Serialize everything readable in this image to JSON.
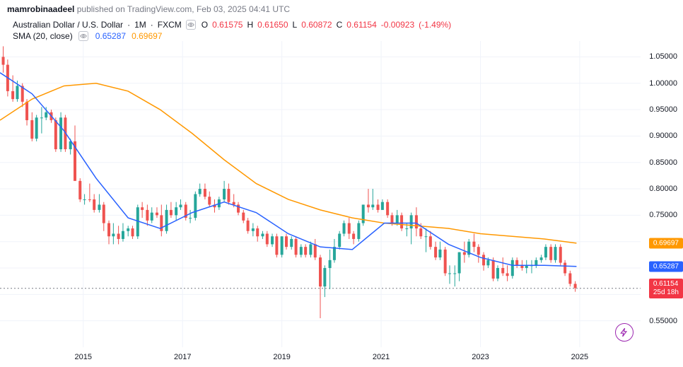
{
  "header": {
    "username": "mamrobinaadeel",
    "published_on": "published on",
    "site": "TradingView.com",
    "timestamp": "Feb 03, 2025 04:41 UTC"
  },
  "symbol": {
    "name": "Australian Dollar / U.S. Dollar",
    "interval": "1M",
    "exchange": "FXCM",
    "o_label": "O",
    "o": "0.61575",
    "h_label": "H",
    "h": "0.61650",
    "l_label": "L",
    "l": "0.60872",
    "c_label": "C",
    "c": "0.61154",
    "change": "-0.00923",
    "change_pct": "(-1.49%)"
  },
  "sma": {
    "label": "SMA (20, close)",
    "val1": "0.65287",
    "val2": "0.69697"
  },
  "yaxis": {
    "min": 0.5,
    "max": 1.08,
    "ticks": [
      1.05,
      1.0,
      0.95,
      0.9,
      0.85,
      0.8,
      0.75,
      0.7,
      0.65,
      0.6,
      0.55
    ],
    "labels": [
      "1.05000",
      "1.00000",
      "0.95000",
      "0.90000",
      "0.85000",
      "0.80000",
      "0.75000",
      "0.70000",
      "0.65000",
      "0.60000",
      "0.55000"
    ]
  },
  "xaxis": {
    "labels": [
      "2015",
      "2017",
      "2019",
      "2021",
      "2023",
      "2025"
    ],
    "positions": [
      0.13,
      0.285,
      0.44,
      0.595,
      0.75,
      0.905
    ]
  },
  "price_tags": {
    "orange": "0.69697",
    "blue": "0.65287",
    "red_price": "0.61154",
    "red_time": "25d 18h"
  },
  "current_price": 0.61154,
  "colors": {
    "up": "#26a69a",
    "down": "#ef5350",
    "sma_blue": "#2962ff",
    "sma_orange": "#ff9800",
    "grid": "#f0f3fa"
  },
  "candles": [
    {
      "x": 0.005,
      "o": 1.05,
      "h": 1.07,
      "l": 1.02,
      "c": 1.035,
      "d": "d"
    },
    {
      "x": 0.012,
      "o": 1.035,
      "h": 1.045,
      "l": 0.975,
      "c": 0.985,
      "d": "d"
    },
    {
      "x": 0.02,
      "o": 0.985,
      "h": 1.015,
      "l": 0.965,
      "c": 0.97,
      "d": "d"
    },
    {
      "x": 0.027,
      "o": 0.97,
      "h": 1.005,
      "l": 0.965,
      "c": 0.995,
      "d": "u"
    },
    {
      "x": 0.035,
      "o": 0.995,
      "h": 1.0,
      "l": 0.955,
      "c": 0.965,
      "d": "d"
    },
    {
      "x": 0.042,
      "o": 0.965,
      "h": 0.97,
      "l": 0.92,
      "c": 0.93,
      "d": "d"
    },
    {
      "x": 0.05,
      "o": 0.93,
      "h": 0.945,
      "l": 0.89,
      "c": 0.895,
      "d": "d"
    },
    {
      "x": 0.057,
      "o": 0.895,
      "h": 0.94,
      "l": 0.89,
      "c": 0.935,
      "d": "u"
    },
    {
      "x": 0.065,
      "o": 0.935,
      "h": 0.955,
      "l": 0.905,
      "c": 0.935,
      "d": "u"
    },
    {
      "x": 0.072,
      "o": 0.935,
      "h": 0.955,
      "l": 0.93,
      "c": 0.945,
      "d": "u"
    },
    {
      "x": 0.08,
      "o": 0.945,
      "h": 0.95,
      "l": 0.925,
      "c": 0.93,
      "d": "d"
    },
    {
      "x": 0.087,
      "o": 0.93,
      "h": 0.935,
      "l": 0.87,
      "c": 0.875,
      "d": "d"
    },
    {
      "x": 0.095,
      "o": 0.875,
      "h": 0.945,
      "l": 0.87,
      "c": 0.935,
      "d": "u"
    },
    {
      "x": 0.102,
      "o": 0.935,
      "h": 0.94,
      "l": 0.87,
      "c": 0.875,
      "d": "d"
    },
    {
      "x": 0.11,
      "o": 0.875,
      "h": 0.895,
      "l": 0.865,
      "c": 0.89,
      "d": "u"
    },
    {
      "x": 0.117,
      "o": 0.89,
      "h": 0.92,
      "l": 0.88,
      "c": 0.815,
      "d": "d"
    },
    {
      "x": 0.125,
      "o": 0.815,
      "h": 0.82,
      "l": 0.775,
      "c": 0.78,
      "d": "d"
    },
    {
      "x": 0.132,
      "o": 0.78,
      "h": 0.79,
      "l": 0.77,
      "c": 0.78,
      "d": "u"
    },
    {
      "x": 0.14,
      "o": 0.78,
      "h": 0.81,
      "l": 0.775,
      "c": 0.78,
      "d": "d"
    },
    {
      "x": 0.147,
      "o": 0.78,
      "h": 0.79,
      "l": 0.755,
      "c": 0.76,
      "d": "d"
    },
    {
      "x": 0.155,
      "o": 0.76,
      "h": 0.79,
      "l": 0.755,
      "c": 0.77,
      "d": "u"
    },
    {
      "x": 0.162,
      "o": 0.77,
      "h": 0.775,
      "l": 0.72,
      "c": 0.735,
      "d": "d"
    },
    {
      "x": 0.17,
      "o": 0.735,
      "h": 0.74,
      "l": 0.695,
      "c": 0.71,
      "d": "d"
    },
    {
      "x": 0.177,
      "o": 0.71,
      "h": 0.735,
      "l": 0.695,
      "c": 0.715,
      "d": "u"
    },
    {
      "x": 0.185,
      "o": 0.715,
      "h": 0.73,
      "l": 0.695,
      "c": 0.705,
      "d": "d"
    },
    {
      "x": 0.192,
      "o": 0.705,
      "h": 0.735,
      "l": 0.7,
      "c": 0.72,
      "d": "u"
    },
    {
      "x": 0.2,
      "o": 0.72,
      "h": 0.73,
      "l": 0.71,
      "c": 0.725,
      "d": "u"
    },
    {
      "x": 0.207,
      "o": 0.725,
      "h": 0.73,
      "l": 0.705,
      "c": 0.71,
      "d": "d"
    },
    {
      "x": 0.215,
      "o": 0.71,
      "h": 0.77,
      "l": 0.705,
      "c": 0.765,
      "d": "u"
    },
    {
      "x": 0.222,
      "o": 0.765,
      "h": 0.775,
      "l": 0.745,
      "c": 0.76,
      "d": "d"
    },
    {
      "x": 0.23,
      "o": 0.76,
      "h": 0.77,
      "l": 0.73,
      "c": 0.74,
      "d": "d"
    },
    {
      "x": 0.237,
      "o": 0.74,
      "h": 0.765,
      "l": 0.735,
      "c": 0.755,
      "d": "u"
    },
    {
      "x": 0.245,
      "o": 0.755,
      "h": 0.765,
      "l": 0.745,
      "c": 0.75,
      "d": "d"
    },
    {
      "x": 0.252,
      "o": 0.75,
      "h": 0.77,
      "l": 0.71,
      "c": 0.72,
      "d": "d"
    },
    {
      "x": 0.26,
      "o": 0.72,
      "h": 0.77,
      "l": 0.715,
      "c": 0.76,
      "d": "u"
    },
    {
      "x": 0.267,
      "o": 0.76,
      "h": 0.775,
      "l": 0.745,
      "c": 0.75,
      "d": "d"
    },
    {
      "x": 0.275,
      "o": 0.75,
      "h": 0.775,
      "l": 0.74,
      "c": 0.765,
      "d": "u"
    },
    {
      "x": 0.282,
      "o": 0.765,
      "h": 0.78,
      "l": 0.76,
      "c": 0.77,
      "d": "u"
    },
    {
      "x": 0.29,
      "o": 0.77,
      "h": 0.775,
      "l": 0.74,
      "c": 0.745,
      "d": "d"
    },
    {
      "x": 0.297,
      "o": 0.745,
      "h": 0.76,
      "l": 0.735,
      "c": 0.745,
      "d": "u"
    },
    {
      "x": 0.305,
      "o": 0.745,
      "h": 0.795,
      "l": 0.74,
      "c": 0.79,
      "d": "u"
    },
    {
      "x": 0.312,
      "o": 0.79,
      "h": 0.81,
      "l": 0.785,
      "c": 0.8,
      "d": "u"
    },
    {
      "x": 0.32,
      "o": 0.8,
      "h": 0.81,
      "l": 0.78,
      "c": 0.785,
      "d": "d"
    },
    {
      "x": 0.327,
      "o": 0.785,
      "h": 0.795,
      "l": 0.765,
      "c": 0.77,
      "d": "d"
    },
    {
      "x": 0.335,
      "o": 0.77,
      "h": 0.78,
      "l": 0.755,
      "c": 0.765,
      "d": "d"
    },
    {
      "x": 0.342,
      "o": 0.765,
      "h": 0.785,
      "l": 0.76,
      "c": 0.78,
      "d": "u"
    },
    {
      "x": 0.35,
      "o": 0.78,
      "h": 0.815,
      "l": 0.775,
      "c": 0.8,
      "d": "u"
    },
    {
      "x": 0.357,
      "o": 0.8,
      "h": 0.81,
      "l": 0.77,
      "c": 0.775,
      "d": "d"
    },
    {
      "x": 0.365,
      "o": 0.775,
      "h": 0.79,
      "l": 0.765,
      "c": 0.77,
      "d": "d"
    },
    {
      "x": 0.372,
      "o": 0.77,
      "h": 0.775,
      "l": 0.75,
      "c": 0.755,
      "d": "d"
    },
    {
      "x": 0.38,
      "o": 0.755,
      "h": 0.76,
      "l": 0.735,
      "c": 0.74,
      "d": "d"
    },
    {
      "x": 0.387,
      "o": 0.74,
      "h": 0.745,
      "l": 0.715,
      "c": 0.72,
      "d": "d"
    },
    {
      "x": 0.395,
      "o": 0.72,
      "h": 0.735,
      "l": 0.71,
      "c": 0.725,
      "d": "u"
    },
    {
      "x": 0.402,
      "o": 0.725,
      "h": 0.73,
      "l": 0.7,
      "c": 0.71,
      "d": "d"
    },
    {
      "x": 0.41,
      "o": 0.71,
      "h": 0.72,
      "l": 0.705,
      "c": 0.715,
      "d": "u"
    },
    {
      "x": 0.417,
      "o": 0.715,
      "h": 0.72,
      "l": 0.69,
      "c": 0.695,
      "d": "d"
    },
    {
      "x": 0.425,
      "o": 0.695,
      "h": 0.715,
      "l": 0.69,
      "c": 0.71,
      "d": "u"
    },
    {
      "x": 0.432,
      "o": 0.71,
      "h": 0.715,
      "l": 0.67,
      "c": 0.675,
      "d": "d"
    },
    {
      "x": 0.44,
      "o": 0.675,
      "h": 0.71,
      "l": 0.67,
      "c": 0.71,
      "d": "u"
    },
    {
      "x": 0.447,
      "o": 0.71,
      "h": 0.715,
      "l": 0.685,
      "c": 0.69,
      "d": "d"
    },
    {
      "x": 0.455,
      "o": 0.69,
      "h": 0.71,
      "l": 0.685,
      "c": 0.705,
      "d": "u"
    },
    {
      "x": 0.462,
      "o": 0.705,
      "h": 0.71,
      "l": 0.67,
      "c": 0.675,
      "d": "d"
    },
    {
      "x": 0.47,
      "o": 0.675,
      "h": 0.695,
      "l": 0.67,
      "c": 0.69,
      "d": "u"
    },
    {
      "x": 0.477,
      "o": 0.69,
      "h": 0.695,
      "l": 0.67,
      "c": 0.675,
      "d": "d"
    },
    {
      "x": 0.485,
      "o": 0.675,
      "h": 0.7,
      "l": 0.67,
      "c": 0.695,
      "d": "u"
    },
    {
      "x": 0.492,
      "o": 0.695,
      "h": 0.705,
      "l": 0.665,
      "c": 0.67,
      "d": "d"
    },
    {
      "x": 0.5,
      "o": 0.67,
      "h": 0.675,
      "l": 0.555,
      "c": 0.615,
      "d": "d"
    },
    {
      "x": 0.507,
      "o": 0.615,
      "h": 0.655,
      "l": 0.595,
      "c": 0.65,
      "d": "u"
    },
    {
      "x": 0.515,
      "o": 0.65,
      "h": 0.685,
      "l": 0.61,
      "c": 0.665,
      "d": "u"
    },
    {
      "x": 0.522,
      "o": 0.665,
      "h": 0.705,
      "l": 0.66,
      "c": 0.69,
      "d": "u"
    },
    {
      "x": 0.53,
      "o": 0.69,
      "h": 0.72,
      "l": 0.685,
      "c": 0.715,
      "d": "u"
    },
    {
      "x": 0.537,
      "o": 0.715,
      "h": 0.74,
      "l": 0.71,
      "c": 0.735,
      "d": "u"
    },
    {
      "x": 0.545,
      "o": 0.735,
      "h": 0.745,
      "l": 0.705,
      "c": 0.715,
      "d": "d"
    },
    {
      "x": 0.552,
      "o": 0.715,
      "h": 0.72,
      "l": 0.695,
      "c": 0.705,
      "d": "d"
    },
    {
      "x": 0.56,
      "o": 0.705,
      "h": 0.74,
      "l": 0.7,
      "c": 0.735,
      "d": "u"
    },
    {
      "x": 0.567,
      "o": 0.735,
      "h": 0.77,
      "l": 0.73,
      "c": 0.77,
      "d": "u"
    },
    {
      "x": 0.575,
      "o": 0.77,
      "h": 0.8,
      "l": 0.755,
      "c": 0.765,
      "d": "d"
    },
    {
      "x": 0.582,
      "o": 0.765,
      "h": 0.8,
      "l": 0.76,
      "c": 0.77,
      "d": "u"
    },
    {
      "x": 0.59,
      "o": 0.77,
      "h": 0.78,
      "l": 0.755,
      "c": 0.76,
      "d": "d"
    },
    {
      "x": 0.597,
      "o": 0.76,
      "h": 0.78,
      "l": 0.77,
      "c": 0.775,
      "d": "u"
    },
    {
      "x": 0.605,
      "o": 0.775,
      "h": 0.78,
      "l": 0.745,
      "c": 0.75,
      "d": "d"
    },
    {
      "x": 0.612,
      "o": 0.75,
      "h": 0.755,
      "l": 0.73,
      "c": 0.735,
      "d": "d"
    },
    {
      "x": 0.62,
      "o": 0.735,
      "h": 0.76,
      "l": 0.73,
      "c": 0.75,
      "d": "u"
    },
    {
      "x": 0.627,
      "o": 0.75,
      "h": 0.755,
      "l": 0.72,
      "c": 0.725,
      "d": "d"
    },
    {
      "x": 0.635,
      "o": 0.725,
      "h": 0.735,
      "l": 0.71,
      "c": 0.725,
      "d": "u"
    },
    {
      "x": 0.642,
      "o": 0.725,
      "h": 0.755,
      "l": 0.695,
      "c": 0.75,
      "d": "u"
    },
    {
      "x": 0.65,
      "o": 0.75,
      "h": 0.765,
      "l": 0.71,
      "c": 0.725,
      "d": "d"
    },
    {
      "x": 0.657,
      "o": 0.725,
      "h": 0.735,
      "l": 0.705,
      "c": 0.71,
      "d": "d"
    },
    {
      "x": 0.665,
      "o": 0.71,
      "h": 0.725,
      "l": 0.68,
      "c": 0.71,
      "d": "u"
    },
    {
      "x": 0.672,
      "o": 0.71,
      "h": 0.72,
      "l": 0.685,
      "c": 0.69,
      "d": "d"
    },
    {
      "x": 0.68,
      "o": 0.69,
      "h": 0.7,
      "l": 0.665,
      "c": 0.67,
      "d": "d"
    },
    {
      "x": 0.687,
      "o": 0.67,
      "h": 0.7,
      "l": 0.665,
      "c": 0.685,
      "d": "u"
    },
    {
      "x": 0.695,
      "o": 0.685,
      "h": 0.69,
      "l": 0.635,
      "c": 0.64,
      "d": "d"
    },
    {
      "x": 0.702,
      "o": 0.64,
      "h": 0.655,
      "l": 0.62,
      "c": 0.64,
      "d": "u"
    },
    {
      "x": 0.71,
      "o": 0.64,
      "h": 0.655,
      "l": 0.615,
      "c": 0.64,
      "d": "u"
    },
    {
      "x": 0.717,
      "o": 0.64,
      "h": 0.68,
      "l": 0.625,
      "c": 0.68,
      "d": "u"
    },
    {
      "x": 0.725,
      "o": 0.68,
      "h": 0.7,
      "l": 0.66,
      "c": 0.675,
      "d": "d"
    },
    {
      "x": 0.732,
      "o": 0.675,
      "h": 0.705,
      "l": 0.67,
      "c": 0.7,
      "d": "u"
    },
    {
      "x": 0.74,
      "o": 0.7,
      "h": 0.715,
      "l": 0.68,
      "c": 0.69,
      "d": "d"
    },
    {
      "x": 0.747,
      "o": 0.69,
      "h": 0.695,
      "l": 0.66,
      "c": 0.675,
      "d": "d"
    },
    {
      "x": 0.755,
      "o": 0.675,
      "h": 0.68,
      "l": 0.645,
      "c": 0.655,
      "d": "d"
    },
    {
      "x": 0.762,
      "o": 0.655,
      "h": 0.67,
      "l": 0.65,
      "c": 0.665,
      "d": "u"
    },
    {
      "x": 0.77,
      "o": 0.665,
      "h": 0.67,
      "l": 0.625,
      "c": 0.63,
      "d": "d"
    },
    {
      "x": 0.777,
      "o": 0.63,
      "h": 0.655,
      "l": 0.625,
      "c": 0.65,
      "d": "u"
    },
    {
      "x": 0.785,
      "o": 0.65,
      "h": 0.67,
      "l": 0.635,
      "c": 0.64,
      "d": "d"
    },
    {
      "x": 0.792,
      "o": 0.64,
      "h": 0.655,
      "l": 0.625,
      "c": 0.635,
      "d": "d"
    },
    {
      "x": 0.8,
      "o": 0.635,
      "h": 0.67,
      "l": 0.63,
      "c": 0.665,
      "d": "u"
    },
    {
      "x": 0.807,
      "o": 0.665,
      "h": 0.67,
      "l": 0.65,
      "c": 0.655,
      "d": "d"
    },
    {
      "x": 0.815,
      "o": 0.655,
      "h": 0.665,
      "l": 0.645,
      "c": 0.65,
      "d": "d"
    },
    {
      "x": 0.822,
      "o": 0.65,
      "h": 0.665,
      "l": 0.64,
      "c": 0.655,
      "d": "u"
    },
    {
      "x": 0.83,
      "o": 0.655,
      "h": 0.665,
      "l": 0.64,
      "c": 0.655,
      "d": "u"
    },
    {
      "x": 0.837,
      "o": 0.655,
      "h": 0.67,
      "l": 0.65,
      "c": 0.665,
      "d": "u"
    },
    {
      "x": 0.845,
      "o": 0.665,
      "h": 0.675,
      "l": 0.66,
      "c": 0.67,
      "d": "u"
    },
    {
      "x": 0.852,
      "o": 0.67,
      "h": 0.695,
      "l": 0.665,
      "c": 0.69,
      "d": "u"
    },
    {
      "x": 0.86,
      "o": 0.69,
      "h": 0.695,
      "l": 0.66,
      "c": 0.665,
      "d": "d"
    },
    {
      "x": 0.867,
      "o": 0.665,
      "h": 0.695,
      "l": 0.66,
      "c": 0.69,
      "d": "u"
    },
    {
      "x": 0.875,
      "o": 0.69,
      "h": 0.695,
      "l": 0.655,
      "c": 0.66,
      "d": "d"
    },
    {
      "x": 0.882,
      "o": 0.66,
      "h": 0.665,
      "l": 0.635,
      "c": 0.64,
      "d": "d"
    },
    {
      "x": 0.89,
      "o": 0.64,
      "h": 0.645,
      "l": 0.615,
      "c": 0.62,
      "d": "d"
    },
    {
      "x": 0.898,
      "o": 0.62,
      "h": 0.625,
      "l": 0.605,
      "c": 0.612,
      "d": "d"
    }
  ],
  "sma_blue_line": [
    {
      "x": 0.0,
      "y": 1.02
    },
    {
      "x": 0.05,
      "y": 0.98
    },
    {
      "x": 0.1,
      "y": 0.91
    },
    {
      "x": 0.15,
      "y": 0.82
    },
    {
      "x": 0.2,
      "y": 0.745
    },
    {
      "x": 0.25,
      "y": 0.725
    },
    {
      "x": 0.3,
      "y": 0.755
    },
    {
      "x": 0.35,
      "y": 0.775
    },
    {
      "x": 0.4,
      "y": 0.755
    },
    {
      "x": 0.45,
      "y": 0.715
    },
    {
      "x": 0.5,
      "y": 0.69
    },
    {
      "x": 0.55,
      "y": 0.685
    },
    {
      "x": 0.6,
      "y": 0.735
    },
    {
      "x": 0.65,
      "y": 0.735
    },
    {
      "x": 0.7,
      "y": 0.695
    },
    {
      "x": 0.75,
      "y": 0.67
    },
    {
      "x": 0.8,
      "y": 0.655
    },
    {
      "x": 0.85,
      "y": 0.655
    },
    {
      "x": 0.9,
      "y": 0.653
    }
  ],
  "sma_orange_line": [
    {
      "x": 0.0,
      "y": 0.93
    },
    {
      "x": 0.05,
      "y": 0.97
    },
    {
      "x": 0.1,
      "y": 0.995
    },
    {
      "x": 0.15,
      "y": 1.0
    },
    {
      "x": 0.2,
      "y": 0.985
    },
    {
      "x": 0.25,
      "y": 0.95
    },
    {
      "x": 0.3,
      "y": 0.905
    },
    {
      "x": 0.35,
      "y": 0.855
    },
    {
      "x": 0.4,
      "y": 0.81
    },
    {
      "x": 0.45,
      "y": 0.78
    },
    {
      "x": 0.5,
      "y": 0.76
    },
    {
      "x": 0.55,
      "y": 0.745
    },
    {
      "x": 0.6,
      "y": 0.735
    },
    {
      "x": 0.65,
      "y": 0.73
    },
    {
      "x": 0.7,
      "y": 0.725
    },
    {
      "x": 0.75,
      "y": 0.715
    },
    {
      "x": 0.8,
      "y": 0.71
    },
    {
      "x": 0.85,
      "y": 0.705
    },
    {
      "x": 0.9,
      "y": 0.697
    }
  ]
}
